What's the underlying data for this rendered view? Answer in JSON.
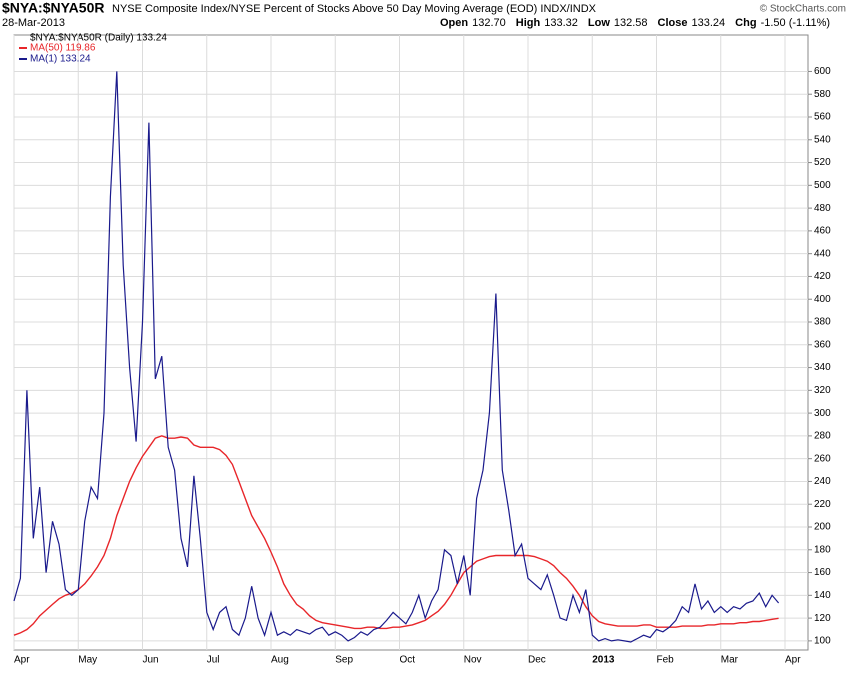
{
  "chart_data": {
    "type": "line",
    "symbol": "$NYA:$NYA50R",
    "title": "NYSE Composite Index/NYSE Percent of Stocks Above 50 Day Moving Average (EOD) INDX/INDX",
    "date": "28-Mar-2013",
    "quote": [
      [
        "Open",
        "132.70"
      ],
      [
        "High",
        "133.32"
      ],
      [
        "Low",
        "132.58"
      ],
      [
        "Close",
        "133.24"
      ],
      [
        "Chg",
        "-1.50 (-1.11%)"
      ]
    ],
    "credit": "© StockCharts.com",
    "legend_header": "$NYA:$NYA50R (Daily) 133.24",
    "categories": [
      "Apr",
      null,
      null,
      null,
      null,
      null,
      null,
      null,
      null,
      null,
      "May",
      null,
      null,
      null,
      null,
      null,
      null,
      null,
      null,
      null,
      "Jun",
      null,
      null,
      null,
      null,
      null,
      null,
      null,
      null,
      null,
      "Jul",
      null,
      null,
      null,
      null,
      null,
      null,
      null,
      null,
      null,
      "Aug",
      null,
      null,
      null,
      null,
      null,
      null,
      null,
      null,
      null,
      "Sep",
      null,
      null,
      null,
      null,
      null,
      null,
      null,
      null,
      null,
      "Oct",
      null,
      null,
      null,
      null,
      null,
      null,
      null,
      null,
      null,
      "Nov",
      null,
      null,
      null,
      null,
      null,
      null,
      null,
      null,
      null,
      "Dec",
      null,
      null,
      null,
      null,
      null,
      null,
      null,
      null,
      null,
      "2013",
      null,
      null,
      null,
      null,
      null,
      null,
      null,
      null,
      null,
      "Feb",
      null,
      null,
      null,
      null,
      null,
      null,
      null,
      null,
      null,
      "Mar",
      null,
      null,
      null,
      null,
      null,
      null,
      null,
      null,
      null,
      "Apr"
    ],
    "series": [
      {
        "name": "MA(50) 119.86",
        "color": "#e8262a",
        "values": [
          105,
          107,
          110,
          115,
          122,
          127,
          132,
          137,
          140,
          142,
          145,
          150,
          157,
          165,
          175,
          190,
          210,
          225,
          240,
          252,
          262,
          270,
          278,
          280,
          278,
          278,
          279,
          278,
          272,
          270,
          270,
          270,
          268,
          263,
          255,
          240,
          225,
          210,
          200,
          190,
          178,
          165,
          150,
          140,
          132,
          128,
          122,
          118,
          116,
          115,
          114,
          113,
          112,
          111,
          111,
          112,
          112,
          111,
          111,
          112,
          112,
          113,
          114,
          116,
          118,
          122,
          126,
          132,
          140,
          150,
          160,
          165,
          170,
          172,
          174,
          175,
          175,
          175,
          175,
          175,
          175,
          174,
          172,
          170,
          166,
          160,
          155,
          148,
          140,
          130,
          122,
          117,
          115,
          114,
          113,
          113,
          113,
          113,
          114,
          114,
          112,
          112,
          112,
          112,
          113,
          113,
          113,
          113,
          114,
          114,
          115,
          115,
          115,
          116,
          116,
          117,
          117,
          118,
          119,
          119.86,
          null
        ]
      },
      {
        "name": "MA(1) 133.24",
        "color": "#1a1a8c",
        "values": [
          135,
          155,
          320,
          190,
          235,
          160,
          205,
          185,
          145,
          140,
          145,
          205,
          235,
          225,
          300,
          490,
          600,
          430,
          340,
          275,
          380,
          555,
          330,
          350,
          270,
          250,
          190,
          165,
          245,
          190,
          125,
          110,
          125,
          130,
          110,
          105,
          120,
          148,
          120,
          105,
          125,
          105,
          108,
          105,
          110,
          108,
          106,
          110,
          112,
          105,
          108,
          105,
          100,
          103,
          108,
          105,
          110,
          112,
          118,
          125,
          120,
          115,
          125,
          140,
          120,
          135,
          145,
          180,
          175,
          150,
          175,
          140,
          225,
          250,
          300,
          405,
          250,
          215,
          175,
          185,
          155,
          150,
          145,
          158,
          140,
          120,
          118,
          140,
          125,
          145,
          105,
          100,
          102,
          100,
          101,
          100,
          99,
          102,
          105,
          103,
          110,
          108,
          112,
          118,
          130,
          125,
          150,
          128,
          135,
          125,
          130,
          125,
          130,
          128,
          133,
          135,
          142,
          130,
          140,
          133.24,
          null
        ]
      }
    ],
    "ylim": [
      92,
      632
    ],
    "yticks": [
      100,
      120,
      140,
      160,
      180,
      200,
      220,
      240,
      260,
      280,
      300,
      320,
      340,
      360,
      380,
      400,
      420,
      440,
      460,
      480,
      500,
      520,
      540,
      560,
      580,
      600
    ],
    "grid": true
  }
}
